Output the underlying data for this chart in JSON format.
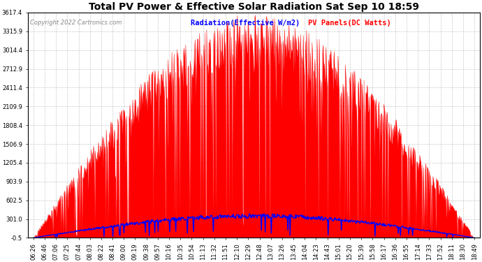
{
  "title": "Total PV Power & Effective Solar Radiation Sat Sep 10 18:59",
  "copyright": "Copyright 2022 Cartronics.com",
  "legend_radiation": "Radiation(Effective W/m2)",
  "legend_pv": "PV Panels(DC Watts)",
  "yticks": [
    -0.5,
    301.0,
    602.5,
    903.9,
    1205.4,
    1506.9,
    1808.4,
    2109.9,
    2411.4,
    2712.9,
    3014.4,
    3315.9,
    3617.4
  ],
  "ymin": -0.5,
  "ymax": 3617.4,
  "background_color": "#ffffff",
  "plot_bg_color": "#ffffff",
  "grid_color": "#bbbbbb",
  "title_color": "#000000",
  "radiation_color": "#0000ff",
  "pv_fill_color": "#ff0000",
  "pv_line_color": "#ff0000",
  "title_fontsize": 10,
  "tick_fontsize": 6.0,
  "copyright_fontsize": 6.0,
  "legend_fontsize": 7.5,
  "xtick_labels": [
    "06:26",
    "06:46",
    "07:06",
    "07:25",
    "07:44",
    "08:03",
    "08:22",
    "08:41",
    "09:00",
    "09:19",
    "09:38",
    "09:57",
    "10:16",
    "10:35",
    "10:54",
    "11:13",
    "11:32",
    "11:51",
    "12:10",
    "12:29",
    "12:48",
    "13:07",
    "13:26",
    "13:45",
    "14:04",
    "14:23",
    "14:43",
    "15:01",
    "15:20",
    "15:39",
    "15:58",
    "16:17",
    "16:36",
    "16:55",
    "17:14",
    "17:33",
    "17:52",
    "18:11",
    "18:30",
    "18:49"
  ],
  "figsize": [
    6.9,
    3.75
  ],
  "dpi": 100
}
